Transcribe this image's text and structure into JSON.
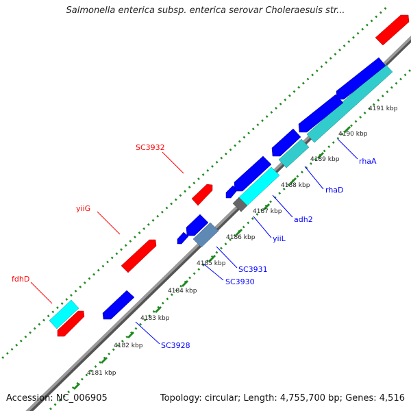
{
  "title": "Salmonella enterica subsp. enterica serovar Choleraesuis str...",
  "footer": {
    "accession": "Accession: NC_006905",
    "stats": "Topology: circular; Length: 4,755,700 bp; Genes: 4,516"
  },
  "colors": {
    "forward_gene": "#ff0000",
    "reverse_gene": "#0000ff",
    "forward_rna": "#00ffff",
    "reverse_rna": "#33cccc",
    "other": "#5f89b5",
    "pseudo": "#666666",
    "backbone": "#888888",
    "dotted_track": "#228b22"
  },
  "ticks": [
    {
      "label": "4181 kbp"
    },
    {
      "label": "4182 kbp"
    },
    {
      "label": "4183 kbp"
    },
    {
      "label": "4184 kbp"
    },
    {
      "label": "4185 kbp"
    },
    {
      "label": "4186 kbp"
    },
    {
      "label": "4187 kbp"
    },
    {
      "label": "4188 kbp"
    },
    {
      "label": "4189 kbp"
    },
    {
      "label": "4190 kbp"
    },
    {
      "label": "4191 kbp"
    }
  ],
  "genes": {
    "forward": [
      {
        "label": "fdhD"
      },
      {
        "label": "yiiG"
      },
      {
        "label": "SC3932"
      }
    ],
    "reverse": [
      {
        "label": "SC3928"
      },
      {
        "label": "SC3930"
      },
      {
        "label": "SC3931"
      },
      {
        "label": "yiiL"
      },
      {
        "label": "adh2"
      },
      {
        "label": "rhaD"
      },
      {
        "label": "rhaA"
      }
    ]
  }
}
